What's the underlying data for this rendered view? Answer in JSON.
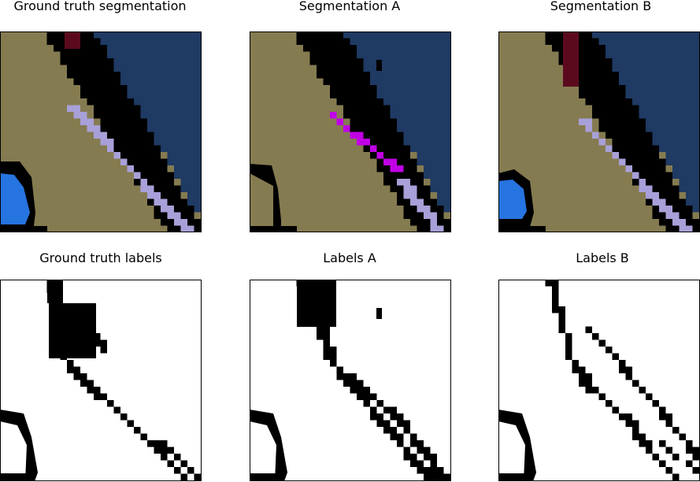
{
  "figure": {
    "panels": [
      {
        "id": "gt_seg",
        "title": "Ground truth segmentation",
        "kind": "segmentation"
      },
      {
        "id": "seg_a",
        "title": "Segmentation A",
        "kind": "segmentation"
      },
      {
        "id": "seg_b",
        "title": "Segmentation B",
        "kind": "segmentation"
      },
      {
        "id": "gt_lab",
        "title": "Ground truth labels",
        "kind": "labels"
      },
      {
        "id": "lab_a",
        "title": "Labels A",
        "kind": "labels"
      },
      {
        "id": "lab_b",
        "title": "Labels B",
        "kind": "labels"
      }
    ]
  },
  "colors": {
    "tan": "#857B51",
    "navy": "#1F3A63",
    "lavender": "#A8A0D8",
    "maroon": "#5B0A1E",
    "blue": "#2674E0",
    "magenta": "#C000E6",
    "black": "#000000",
    "white": "#FFFFFF"
  }
}
